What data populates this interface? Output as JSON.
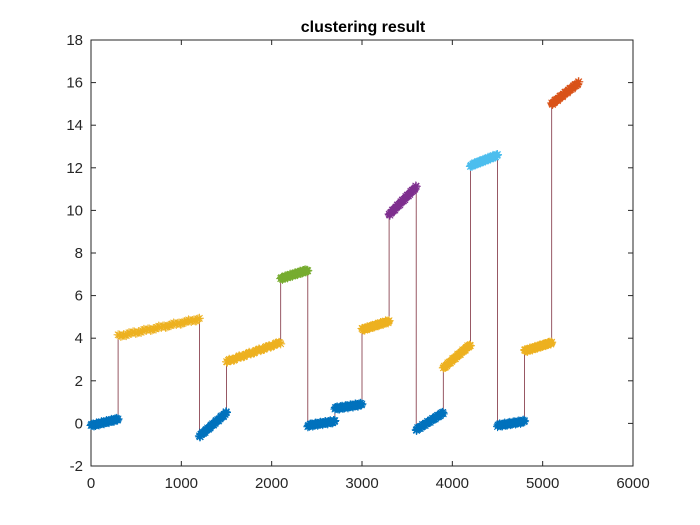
{
  "chart_data": {
    "type": "scatter",
    "title": "clustering result",
    "xlabel": "",
    "ylabel": "",
    "xlim": [
      0,
      6000
    ],
    "ylim": [
      -2,
      18
    ],
    "xticks": [
      0,
      1000,
      2000,
      3000,
      4000,
      5000,
      6000
    ],
    "yticks": [
      -2,
      0,
      2,
      4,
      6,
      8,
      10,
      12,
      14,
      16,
      18
    ],
    "grid": false,
    "legend": "none",
    "marker": "asterisk",
    "line_color": "#7E2F3E",
    "cluster_colors": {
      "blue": "#0072BD",
      "orange": "#EDB120",
      "green": "#77AC30",
      "purple": "#7E2F8E",
      "cyan": "#4DBEEE",
      "red": "#D95319"
    },
    "segments": [
      {
        "color": "blue",
        "x": [
          0,
          300
        ],
        "y": [
          -0.1,
          0.2
        ]
      },
      {
        "color": "orange",
        "x": [
          300,
          1200
        ],
        "y": [
          4.1,
          4.9
        ]
      },
      {
        "color": "blue",
        "x": [
          1200,
          1500
        ],
        "y": [
          -0.6,
          0.5
        ]
      },
      {
        "color": "orange",
        "x": [
          1500,
          2100
        ],
        "y": [
          2.9,
          3.8
        ]
      },
      {
        "color": "green",
        "x": [
          2100,
          2400
        ],
        "y": [
          6.8,
          7.2
        ]
      },
      {
        "color": "blue",
        "x": [
          2400,
          2700
        ],
        "y": [
          -0.1,
          0.1
        ]
      },
      {
        "color": "blue",
        "x": [
          2700,
          3000
        ],
        "y": [
          0.7,
          0.9
        ]
      },
      {
        "color": "orange",
        "x": [
          3000,
          3300
        ],
        "y": [
          4.4,
          4.8
        ]
      },
      {
        "color": "purple",
        "x": [
          3300,
          3600
        ],
        "y": [
          9.8,
          11.1
        ]
      },
      {
        "color": "blue",
        "x": [
          3600,
          3900
        ],
        "y": [
          -0.3,
          0.5
        ]
      },
      {
        "color": "orange",
        "x": [
          3900,
          4200
        ],
        "y": [
          2.6,
          3.7
        ]
      },
      {
        "color": "cyan",
        "x": [
          4200,
          4500
        ],
        "y": [
          12.1,
          12.6
        ]
      },
      {
        "color": "blue",
        "x": [
          4500,
          4800
        ],
        "y": [
          -0.1,
          0.1
        ]
      },
      {
        "color": "orange",
        "x": [
          4800,
          5100
        ],
        "y": [
          3.4,
          3.8
        ]
      },
      {
        "color": "red",
        "x": [
          5100,
          5400
        ],
        "y": [
          15.0,
          16.0
        ]
      }
    ]
  }
}
